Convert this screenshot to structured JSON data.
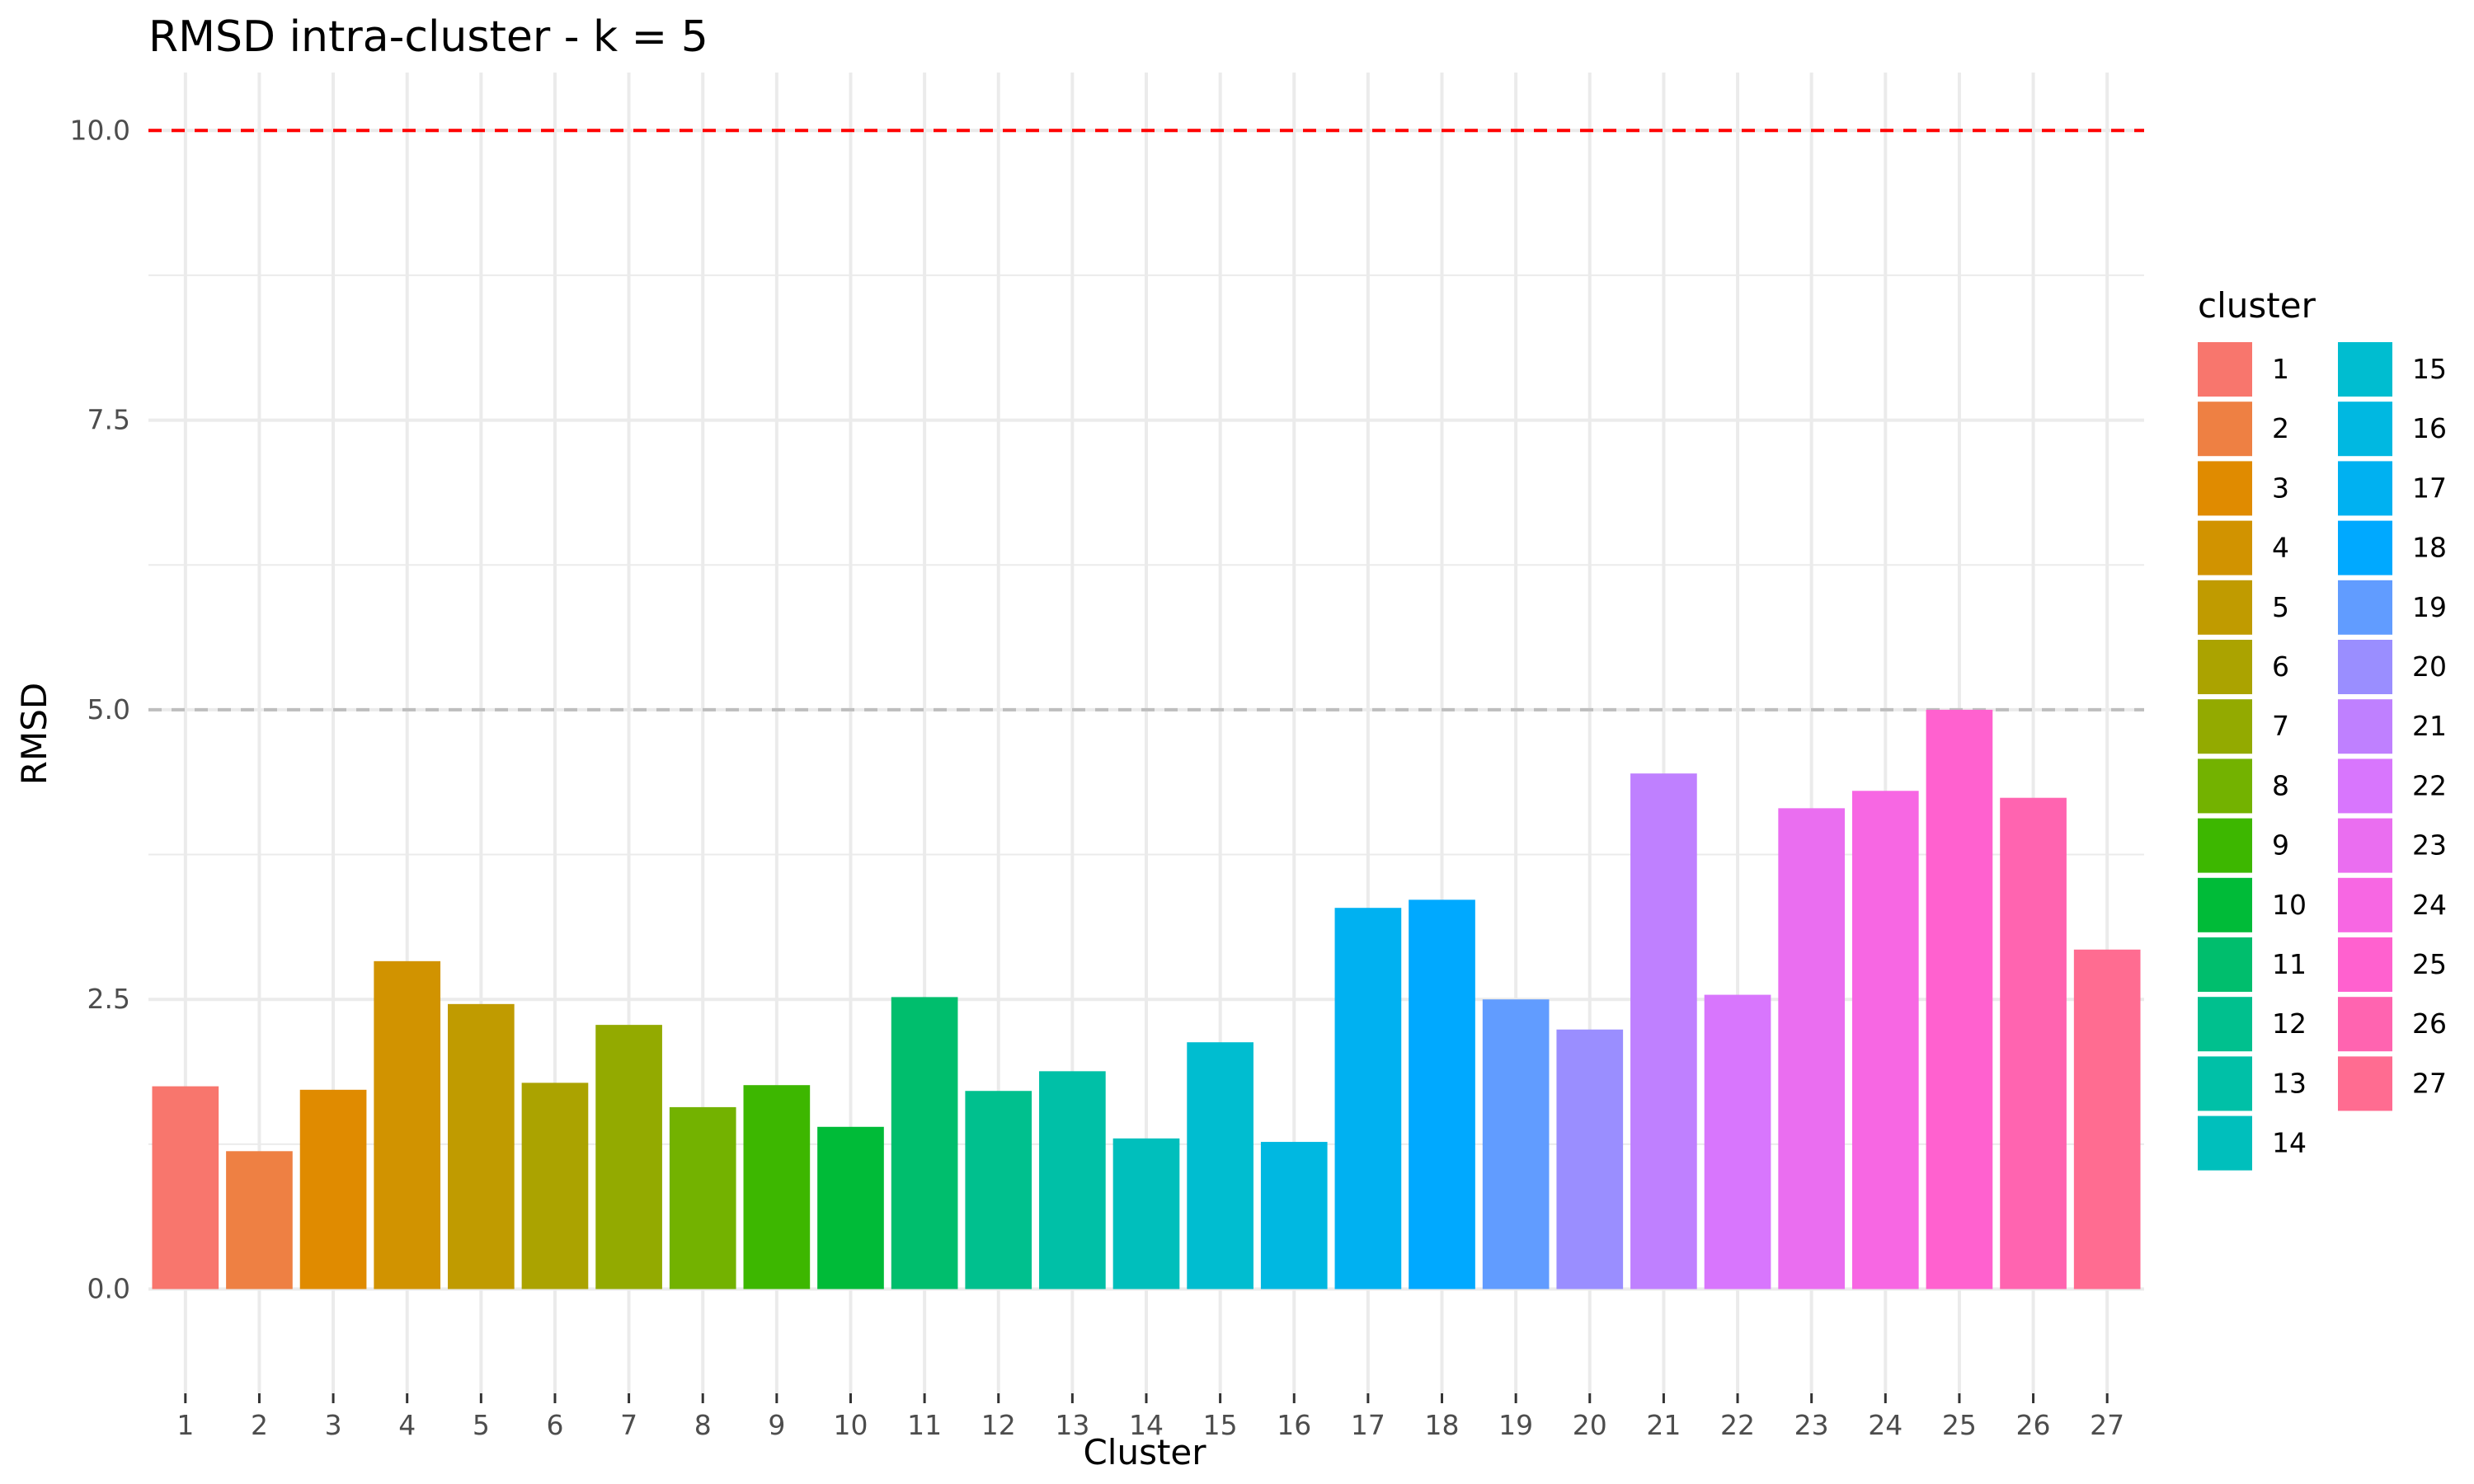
{
  "chart_data": {
    "type": "bar",
    "title": "RMSD intra-cluster - k = 5",
    "xlabel": "Cluster",
    "ylabel": "RMSD",
    "categories": [
      "1",
      "2",
      "3",
      "4",
      "5",
      "6",
      "7",
      "8",
      "9",
      "10",
      "11",
      "12",
      "13",
      "14",
      "15",
      "16",
      "17",
      "18",
      "19",
      "20",
      "21",
      "22",
      "23",
      "24",
      "25",
      "26",
      "27"
    ],
    "values": [
      1.75,
      1.19,
      1.72,
      2.83,
      2.46,
      1.78,
      2.28,
      1.57,
      1.76,
      1.4,
      2.52,
      1.71,
      1.88,
      1.3,
      2.13,
      1.27,
      3.29,
      3.36,
      2.5,
      2.24,
      4.45,
      2.54,
      4.15,
      4.3,
      5.0,
      4.24,
      2.93
    ],
    "colors": [
      "#F8766D",
      "#EE8043",
      "#E08B00",
      "#D19300",
      "#C09B00",
      "#ABA300",
      "#93AA00",
      "#73B200",
      "#3DB700",
      "#00BB38",
      "#00BE6D",
      "#00C08E",
      "#00C0A7",
      "#00BFBC",
      "#00BDD0",
      "#00B8E1",
      "#00B1F1",
      "#00A9FF",
      "#619CFF",
      "#9A8EFF",
      "#BF80FF",
      "#D876FD",
      "#EA6EF0",
      "#F767E3",
      "#FF61CF",
      "#FF64B0",
      "#FF6C91"
    ],
    "ylim": [
      -0.9,
      10.5
    ],
    "yticks": [
      0.0,
      2.5,
      5.0,
      7.5,
      10.0
    ],
    "ytick_labels": [
      "0.0",
      "2.5",
      "5.0",
      "7.5",
      "10.0"
    ],
    "reference_lines": [
      {
        "value": 10.0,
        "color": "#FF0000",
        "style": "dashed"
      },
      {
        "value": 5.0,
        "color": "#BEBEBE",
        "style": "dashed"
      }
    ],
    "grid": true,
    "legend": {
      "title": "cluster",
      "position": "right",
      "columns": 2
    }
  }
}
